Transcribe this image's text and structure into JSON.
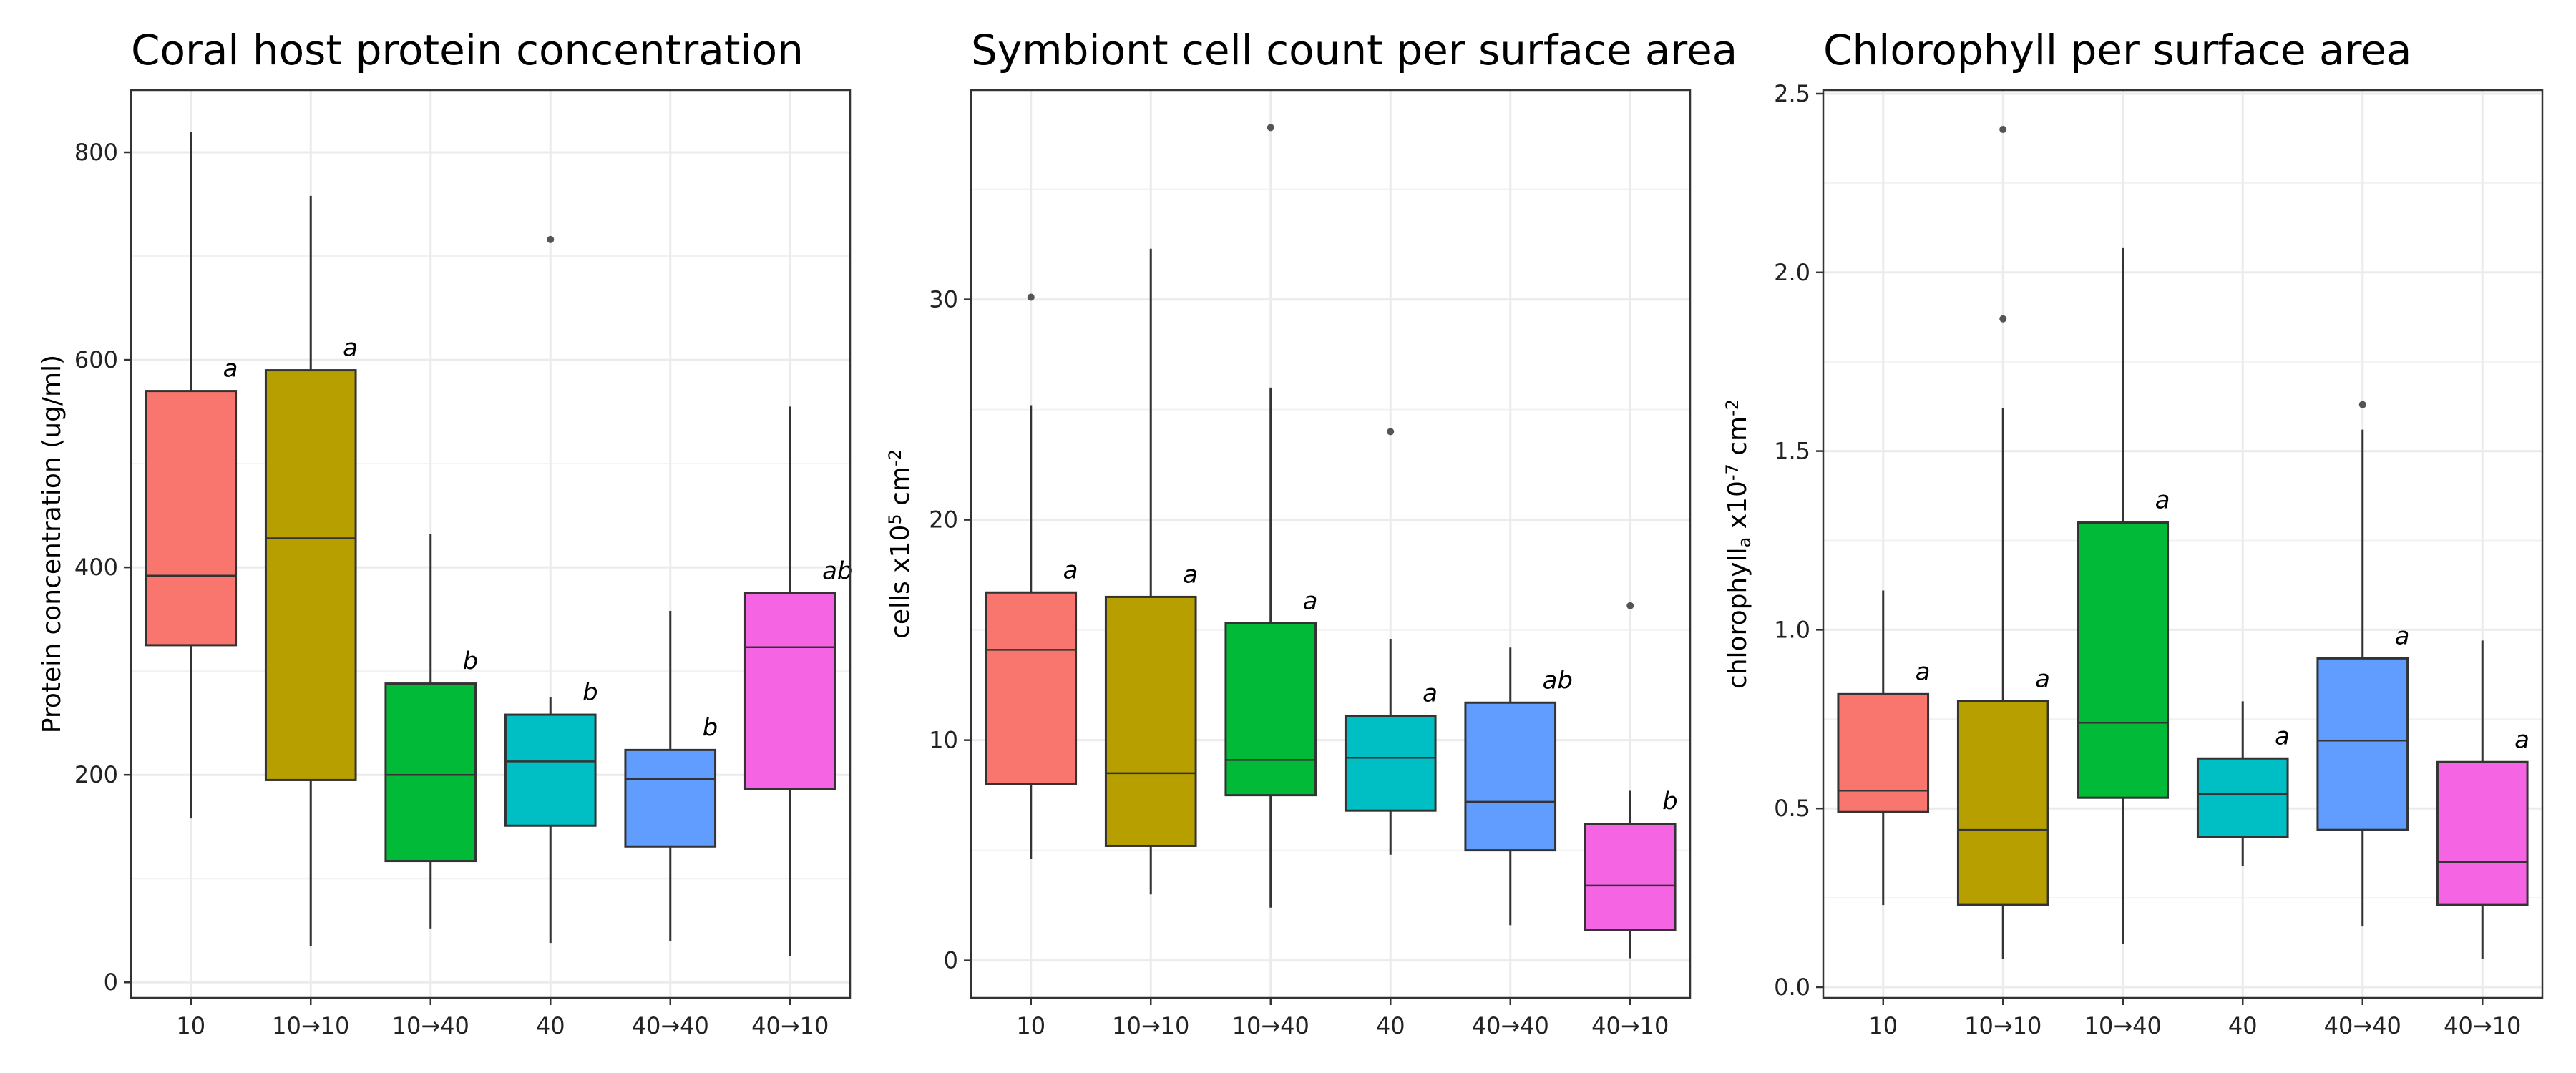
{
  "chart_data": [
    {
      "type": "box",
      "title": "Coral host protein concentration",
      "ylabel": "Protein concentration (ug/ml)",
      "ylim": [
        -15,
        860
      ],
      "yticks": [
        0,
        200,
        400,
        600,
        800
      ],
      "categories": [
        "10",
        "10→10",
        "10→40",
        "40",
        "40→40",
        "40→10"
      ],
      "colors": [
        "#F8766D",
        "#B79F00",
        "#00BA38",
        "#00BFC4",
        "#619CFF",
        "#F564E3"
      ],
      "boxes": [
        {
          "whisker_low": 158,
          "q1": 325,
          "median": 392,
          "q3": 570,
          "whisker_high": 820,
          "outliers": [],
          "label": "a"
        },
        {
          "whisker_low": 35,
          "q1": 195,
          "median": 428,
          "q3": 590,
          "whisker_high": 758,
          "outliers": [],
          "label": "a"
        },
        {
          "whisker_low": 52,
          "q1": 117,
          "median": 200,
          "q3": 288,
          "whisker_high": 432,
          "outliers": [],
          "label": "b"
        },
        {
          "whisker_low": 38,
          "q1": 151,
          "median": 213,
          "q3": 258,
          "whisker_high": 275,
          "outliers": [
            716
          ],
          "label": "b"
        },
        {
          "whisker_low": 40,
          "q1": 131,
          "median": 196,
          "q3": 224,
          "whisker_high": 358,
          "outliers": [],
          "label": "b"
        },
        {
          "whisker_low": 25,
          "q1": 186,
          "median": 323,
          "q3": 375,
          "whisker_high": 555,
          "outliers": [],
          "label": "ab"
        }
      ]
    },
    {
      "type": "box",
      "title": "Symbiont cell count per surface area",
      "ylabel": "cells x10",
      "ylabel_sup": "5",
      "ylabel_unit": "cm",
      "ylabel_unit_sup": "-2",
      "ylim": [
        -1.7,
        39.5
      ],
      "yticks": [
        0,
        10,
        20,
        30
      ],
      "categories": [
        "10",
        "10→10",
        "10→40",
        "40",
        "40→40",
        "40→10"
      ],
      "colors": [
        "#F8766D",
        "#B79F00",
        "#00BA38",
        "#00BFC4",
        "#619CFF",
        "#F564E3"
      ],
      "boxes": [
        {
          "whisker_low": 4.6,
          "q1": 8.0,
          "median": 14.1,
          "q3": 16.7,
          "whisker_high": 25.2,
          "outliers": [
            30.1
          ],
          "label": "a"
        },
        {
          "whisker_low": 3.0,
          "q1": 5.2,
          "median": 8.5,
          "q3": 16.5,
          "whisker_high": 32.3,
          "outliers": [],
          "label": "a"
        },
        {
          "whisker_low": 2.4,
          "q1": 7.5,
          "median": 9.1,
          "q3": 15.3,
          "whisker_high": 26.0,
          "outliers": [
            37.8
          ],
          "label": "a"
        },
        {
          "whisker_low": 4.8,
          "q1": 6.8,
          "median": 9.2,
          "q3": 11.1,
          "whisker_high": 14.6,
          "outliers": [
            24.0
          ],
          "label": "a"
        },
        {
          "whisker_low": 1.6,
          "q1": 5.0,
          "median": 7.2,
          "q3": 11.7,
          "whisker_high": 14.2,
          "outliers": [],
          "label": "ab"
        },
        {
          "whisker_low": 0.1,
          "q1": 1.4,
          "median": 3.4,
          "q3": 6.2,
          "whisker_high": 7.7,
          "outliers": [
            16.1
          ],
          "label": "b"
        }
      ]
    },
    {
      "type": "box",
      "title": "Chlorophyll per surface area",
      "ylabel": "chlorophyll",
      "ylabel_sub": "a",
      "ylabel_mid": " x10",
      "ylabel_sup": "-7",
      "ylabel_unit": " cm",
      "ylabel_unit_sup": "-2",
      "ylim": [
        -0.03,
        2.51
      ],
      "yticks": [
        0.0,
        0.5,
        1.0,
        1.5,
        2.0,
        2.5
      ],
      "ytick_labels": [
        "0.0",
        "0.5",
        "1.0",
        "1.5",
        "2.0",
        "2.5"
      ],
      "categories": [
        "10",
        "10→10",
        "10→40",
        "40",
        "40→40",
        "40→10"
      ],
      "colors": [
        "#F8766D",
        "#B79F00",
        "#00BA38",
        "#00BFC4",
        "#619CFF",
        "#F564E3"
      ],
      "boxes": [
        {
          "whisker_low": 0.23,
          "q1": 0.49,
          "median": 0.55,
          "q3": 0.82,
          "whisker_high": 1.11,
          "outliers": [],
          "label": "a"
        },
        {
          "whisker_low": 0.08,
          "q1": 0.23,
          "median": 0.44,
          "q3": 0.8,
          "whisker_high": 1.62,
          "outliers": [
            1.87,
            2.4
          ],
          "label": "a"
        },
        {
          "whisker_low": 0.12,
          "q1": 0.53,
          "median": 0.74,
          "q3": 1.3,
          "whisker_high": 2.07,
          "outliers": [],
          "label": "a"
        },
        {
          "whisker_low": 0.34,
          "q1": 0.42,
          "median": 0.54,
          "q3": 0.64,
          "whisker_high": 0.8,
          "outliers": [],
          "label": "a"
        },
        {
          "whisker_low": 0.17,
          "q1": 0.44,
          "median": 0.69,
          "q3": 0.92,
          "whisker_high": 1.56,
          "outliers": [
            1.63
          ],
          "label": "a"
        },
        {
          "whisker_low": 0.08,
          "q1": 0.23,
          "median": 0.35,
          "q3": 0.63,
          "whisker_high": 0.97,
          "outliers": [],
          "label": "a"
        }
      ]
    }
  ]
}
